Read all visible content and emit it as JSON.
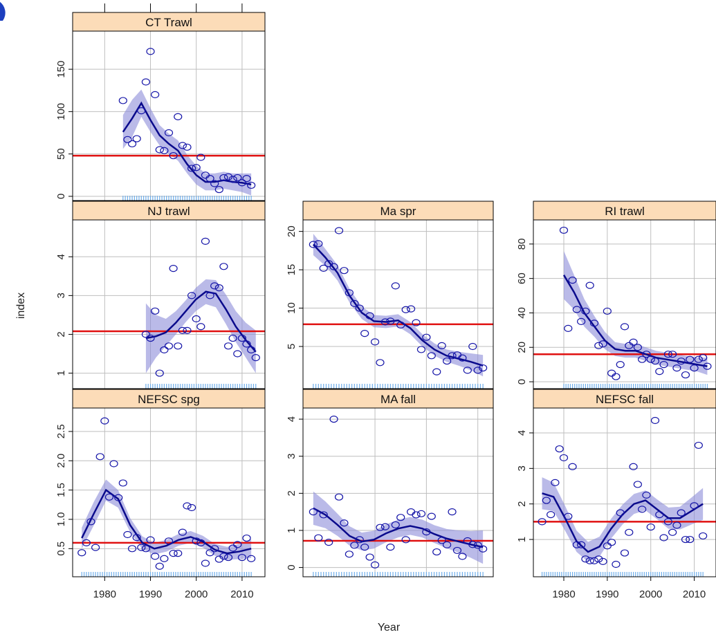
{
  "colors": {
    "strip_bg": "#FCDCB8",
    "point": "#1515A8",
    "smooth": "#0A0A8C",
    "band": "#8C8CD8",
    "refline": "#E01010",
    "grid": "#BEBEBE",
    "rug": "#6FAEEA"
  },
  "axis_titles": {
    "x": "Year",
    "y": "index"
  },
  "chart_data": [
    {
      "type": "scatter",
      "title": "CT Trawl",
      "xlim": [
        1973,
        2015
      ],
      "ylim": [
        -5,
        195
      ],
      "yticks": [
        0,
        50,
        100,
        150
      ],
      "xticks": [
        1980,
        1990,
        2000,
        2010
      ],
      "refline": 48,
      "x": [
        1984,
        1985,
        1986,
        1987,
        1988,
        1989,
        1990,
        1991,
        1992,
        1993,
        1994,
        1995,
        1996,
        1997,
        1998,
        1999,
        2000,
        2001,
        2002,
        2003,
        2004,
        2005,
        2006,
        2007,
        2008,
        2009,
        2010,
        2011,
        2012
      ],
      "y": [
        113,
        67,
        62,
        68,
        101,
        135,
        171,
        120,
        55,
        54,
        75,
        48,
        94,
        60,
        58,
        33,
        34,
        46,
        25,
        21,
        15,
        8,
        22,
        23,
        20,
        22,
        16,
        21,
        13
      ],
      "smooth": [
        76,
        92,
        110,
        90,
        72,
        62,
        54,
        38,
        25,
        17,
        17,
        19,
        17,
        16,
        14
      ],
      "band": [
        20,
        22,
        16,
        14,
        12,
        12,
        12,
        11,
        11,
        10,
        10,
        10,
        10,
        11,
        13
      ]
    },
    {
      "type": "scatter",
      "title": "NJ trawl",
      "xlim": [
        1973,
        2015
      ],
      "ylim": [
        0.6,
        4.95
      ],
      "yticks": [
        1,
        2,
        3,
        4
      ],
      "xticks": [
        1980,
        1990,
        2000,
        2010
      ],
      "refline": 2.08,
      "x": [
        1989,
        1990,
        1991,
        1992,
        1993,
        1994,
        1995,
        1996,
        1997,
        1998,
        1999,
        2000,
        2001,
        2002,
        2003,
        2004,
        2005,
        2006,
        2007,
        2008,
        2009,
        2010,
        2011,
        2012,
        2013
      ],
      "y": [
        2.0,
        1.9,
        2.6,
        1.0,
        1.6,
        1.7,
        3.7,
        1.7,
        2.1,
        2.1,
        3.0,
        2.4,
        2.2,
        4.4,
        3.0,
        3.25,
        3.2,
        3.75,
        1.7,
        1.9,
        1.5,
        1.9,
        1.75,
        1.6,
        1.4
      ],
      "smooth": [
        1.9,
        1.95,
        2.05,
        2.3,
        2.6,
        2.9,
        3.1,
        3.05,
        2.65,
        2.2,
        1.85,
        1.55
      ],
      "band": [
        0.9,
        0.55,
        0.35,
        0.3,
        0.28,
        0.3,
        0.32,
        0.35,
        0.38,
        0.4,
        0.45,
        0.55
      ]
    },
    {
      "type": "scatter",
      "title": "Ma spr",
      "xlim": [
        1976,
        2013
      ],
      "ylim": [
        -0.5,
        21.5
      ],
      "yticks": [
        5,
        10,
        15,
        20
      ],
      "xticks": [
        1990,
        2000,
        2010
      ],
      "refline": 7.9,
      "x": [
        1978,
        1979,
        1980,
        1981,
        1982,
        1983,
        1984,
        1985,
        1986,
        1987,
        1988,
        1989,
        1990,
        1991,
        1992,
        1993,
        1994,
        1995,
        1996,
        1997,
        1998,
        1999,
        2000,
        2001,
        2002,
        2003,
        2004,
        2005,
        2006,
        2007,
        2008,
        2009,
        2010,
        2011
      ],
      "y": [
        18.3,
        18.4,
        15.2,
        15.8,
        15.4,
        20.1,
        14.9,
        12.0,
        10.6,
        10.0,
        6.7,
        9.0,
        5.6,
        2.9,
        8.2,
        8.3,
        12.9,
        7.8,
        9.8,
        9.9,
        8.1,
        4.6,
        6.2,
        3.8,
        1.7,
        5.1,
        3.1,
        3.8,
        3.9,
        3.5,
        1.9,
        5.0,
        1.9,
        2.2
      ],
      "smooth": [
        18.3,
        16.6,
        14.6,
        11.6,
        9.4,
        8.3,
        8.2,
        8.4,
        7.4,
        5.8,
        4.6,
        3.8,
        3.4,
        3.0,
        2.5
      ],
      "band": [
        1.4,
        1.1,
        1.0,
        0.9,
        0.8,
        0.8,
        0.8,
        0.8,
        0.8,
        0.8,
        0.8,
        0.8,
        0.9,
        1.1,
        1.4
      ]
    },
    {
      "type": "scatter",
      "title": "RI trawl",
      "xlim": [
        1973,
        2015
      ],
      "ylim": [
        -4,
        94
      ],
      "yticks": [
        0,
        20,
        40,
        60,
        80
      ],
      "xticks": [
        1980,
        1990,
        2000,
        2010
      ],
      "refline": 16,
      "x": [
        1980,
        1981,
        1982,
        1983,
        1984,
        1985,
        1986,
        1987,
        1988,
        1989,
        1990,
        1991,
        1992,
        1993,
        1994,
        1995,
        1996,
        1997,
        1998,
        1999,
        2000,
        2001,
        2002,
        2003,
        2004,
        2005,
        2006,
        2007,
        2008,
        2009,
        2010,
        2011,
        2012,
        2013
      ],
      "y": [
        88,
        31,
        59,
        42,
        35,
        41,
        56,
        34,
        21,
        22,
        41,
        5,
        3,
        10,
        32,
        21,
        23,
        20,
        13,
        16,
        13,
        12,
        6,
        10,
        16,
        16,
        8,
        12,
        4,
        13,
        8,
        13,
        14,
        9
      ],
      "smooth": [
        62,
        52,
        40,
        32,
        24,
        19,
        18,
        18,
        16,
        14,
        13,
        12,
        11,
        10,
        9
      ],
      "band": [
        14,
        10,
        8,
        6,
        5,
        4,
        4,
        4,
        4,
        4,
        4,
        4,
        4,
        4,
        5
      ]
    },
    {
      "type": "scatter",
      "title": "NEFSC spg",
      "xlim": [
        1973,
        2015
      ],
      "ylim": [
        0.02,
        2.9
      ],
      "yticks": [
        0.5,
        1.0,
        1.5,
        2.0,
        2.5
      ],
      "xticks": [
        1980,
        1990,
        2000,
        2010
      ],
      "refline": 0.6,
      "x": [
        1975,
        1976,
        1977,
        1978,
        1979,
        1980,
        1981,
        1982,
        1983,
        1984,
        1985,
        1986,
        1987,
        1988,
        1989,
        1990,
        1991,
        1992,
        1993,
        1994,
        1995,
        1996,
        1997,
        1998,
        1999,
        2000,
        2001,
        2002,
        2003,
        2004,
        2005,
        2006,
        2007,
        2008,
        2009,
        2010,
        2011,
        2012
      ],
      "y": [
        0.43,
        0.6,
        0.96,
        0.52,
        2.07,
        2.68,
        1.38,
        1.95,
        1.37,
        1.62,
        0.74,
        0.5,
        0.69,
        0.52,
        0.5,
        0.65,
        0.37,
        0.2,
        0.33,
        0.63,
        0.42,
        0.42,
        0.78,
        1.23,
        1.2,
        0.63,
        0.6,
        0.25,
        0.43,
        0.5,
        0.32,
        0.37,
        0.35,
        0.51,
        0.57,
        0.35,
        0.68,
        0.33
      ],
      "smooth": [
        0.68,
        1.1,
        1.5,
        1.35,
        0.9,
        0.6,
        0.5,
        0.55,
        0.65,
        0.7,
        0.62,
        0.48,
        0.42,
        0.45,
        0.5
      ],
      "band": [
        0.18,
        0.2,
        0.18,
        0.15,
        0.12,
        0.11,
        0.1,
        0.1,
        0.1,
        0.1,
        0.1,
        0.1,
        0.11,
        0.13,
        0.16
      ]
    },
    {
      "type": "scatter",
      "title": "MA fall",
      "xlim": [
        1976,
        2013
      ],
      "ylim": [
        -0.25,
        4.3
      ],
      "yticks": [
        0,
        1,
        2,
        3,
        4
      ],
      "xticks": [
        1990,
        2000,
        2010
      ],
      "refline": 0.72,
      "x": [
        1978,
        1979,
        1980,
        1981,
        1982,
        1983,
        1984,
        1985,
        1986,
        1987,
        1988,
        1989,
        1990,
        1991,
        1992,
        1993,
        1994,
        1995,
        1996,
        1997,
        1998,
        1999,
        2000,
        2001,
        2002,
        2003,
        2004,
        2005,
        2006,
        2007,
        2008,
        2009,
        2010,
        2011
      ],
      "y": [
        1.5,
        0.8,
        1.42,
        0.68,
        4.0,
        1.9,
        1.2,
        0.36,
        0.6,
        0.75,
        0.55,
        0.28,
        0.07,
        1.08,
        1.1,
        0.55,
        1.15,
        1.35,
        0.75,
        1.5,
        1.42,
        1.45,
        0.96,
        1.38,
        0.42,
        0.73,
        0.61,
        1.5,
        0.46,
        0.3,
        0.72,
        0.62,
        0.6,
        0.5
      ],
      "smooth": [
        1.6,
        1.42,
        1.15,
        0.85,
        0.7,
        0.75,
        0.92,
        1.05,
        1.12,
        1.05,
        0.9,
        0.78,
        0.7,
        0.62,
        0.55
      ],
      "band": [
        0.45,
        0.36,
        0.3,
        0.26,
        0.24,
        0.24,
        0.24,
        0.24,
        0.24,
        0.24,
        0.24,
        0.26,
        0.3,
        0.36,
        0.45
      ]
    },
    {
      "type": "scatter",
      "title": "NEFSC fall",
      "xlim": [
        1973,
        2015
      ],
      "ylim": [
        -0.05,
        4.7
      ],
      "yticks": [
        1,
        2,
        3,
        4
      ],
      "xticks": [
        1980,
        1990,
        2000,
        2010
      ],
      "refline": 1.5,
      "x": [
        1975,
        1976,
        1977,
        1978,
        1979,
        1980,
        1981,
        1982,
        1983,
        1984,
        1985,
        1986,
        1987,
        1988,
        1989,
        1990,
        1991,
        1992,
        1993,
        1994,
        1995,
        1996,
        1997,
        1998,
        1999,
        2000,
        2001,
        2002,
        2003,
        2004,
        2005,
        2006,
        2007,
        2008,
        2009,
        2010,
        2011,
        2012
      ],
      "y": [
        1.5,
        2.1,
        1.7,
        2.6,
        3.55,
        3.3,
        1.65,
        3.05,
        0.85,
        0.85,
        0.45,
        0.4,
        0.4,
        0.45,
        0.38,
        0.82,
        0.92,
        0.3,
        1.75,
        0.62,
        1.2,
        3.05,
        2.55,
        1.85,
        2.25,
        1.35,
        4.35,
        1.7,
        1.05,
        1.5,
        1.2,
        1.4,
        1.75,
        1.0,
        1.0,
        1.95,
        3.65,
        1.1
      ],
      "smooth": [
        2.3,
        2.2,
        1.6,
        0.95,
        0.65,
        0.8,
        1.3,
        1.7,
        2.0,
        2.1,
        1.85,
        1.6,
        1.6,
        1.8,
        2.0
      ],
      "band": [
        0.45,
        0.4,
        0.35,
        0.3,
        0.28,
        0.28,
        0.28,
        0.28,
        0.28,
        0.28,
        0.28,
        0.3,
        0.32,
        0.38,
        0.45
      ]
    }
  ]
}
